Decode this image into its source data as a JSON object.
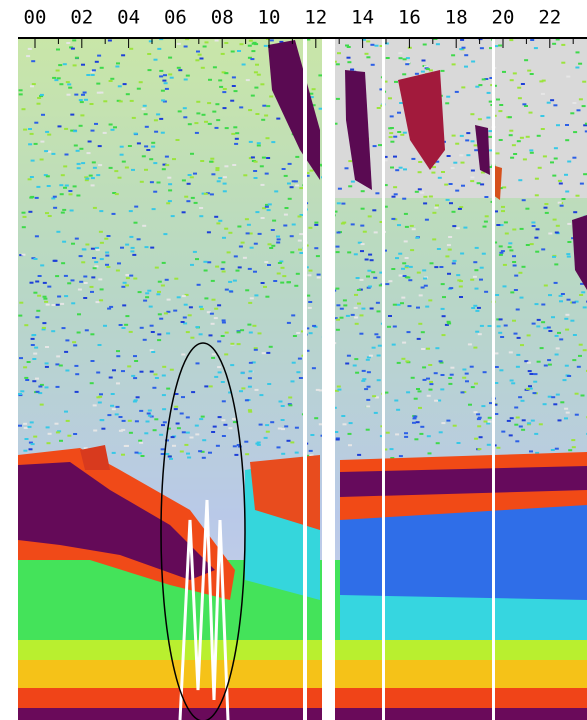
{
  "time_axis": {
    "labels": [
      "00",
      "02",
      "04",
      "06",
      "08",
      "10",
      "12",
      "14",
      "16",
      "18",
      "20",
      "22"
    ]
  }
}
